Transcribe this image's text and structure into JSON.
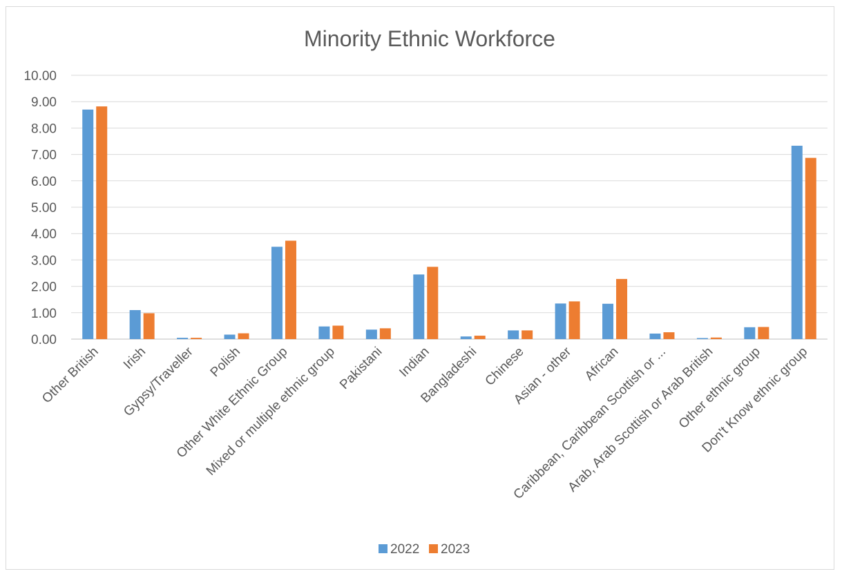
{
  "chart_data": {
    "type": "bar",
    "title": "Minority Ethnic Workforce",
    "xlabel": "",
    "ylabel": "",
    "ylim": [
      0,
      10
    ],
    "yticks": [
      "0.00",
      "1.00",
      "2.00",
      "3.00",
      "4.00",
      "5.00",
      "6.00",
      "7.00",
      "8.00",
      "9.00",
      "10.00"
    ],
    "grid": true,
    "legend_position": "bottom",
    "categories": [
      "Other British",
      "Irish",
      "Gypsy/Traveller",
      "Polish",
      "Other White Ethnic Group",
      "Mixed or multiple ethnic group",
      "Pakistani",
      "Indian",
      "Bangladeshi",
      "Chinese",
      "Asian - other",
      "African",
      "Caribbean, Caribbean Scottish or ...",
      "Arab, Arab Scottish or Arab British",
      "Other ethnic group",
      "Don't Know ethnic group"
    ],
    "series": [
      {
        "name": "2022",
        "color": "#5b9bd5",
        "values": [
          8.7,
          1.1,
          0.05,
          0.17,
          3.5,
          0.48,
          0.36,
          2.45,
          0.1,
          0.33,
          1.35,
          1.34,
          0.21,
          0.04,
          0.45,
          7.33
        ]
      },
      {
        "name": "2023",
        "color": "#ed7d31",
        "values": [
          8.82,
          0.98,
          0.05,
          0.22,
          3.73,
          0.51,
          0.41,
          2.74,
          0.13,
          0.33,
          1.43,
          2.28,
          0.26,
          0.06,
          0.46,
          6.87
        ]
      }
    ]
  }
}
